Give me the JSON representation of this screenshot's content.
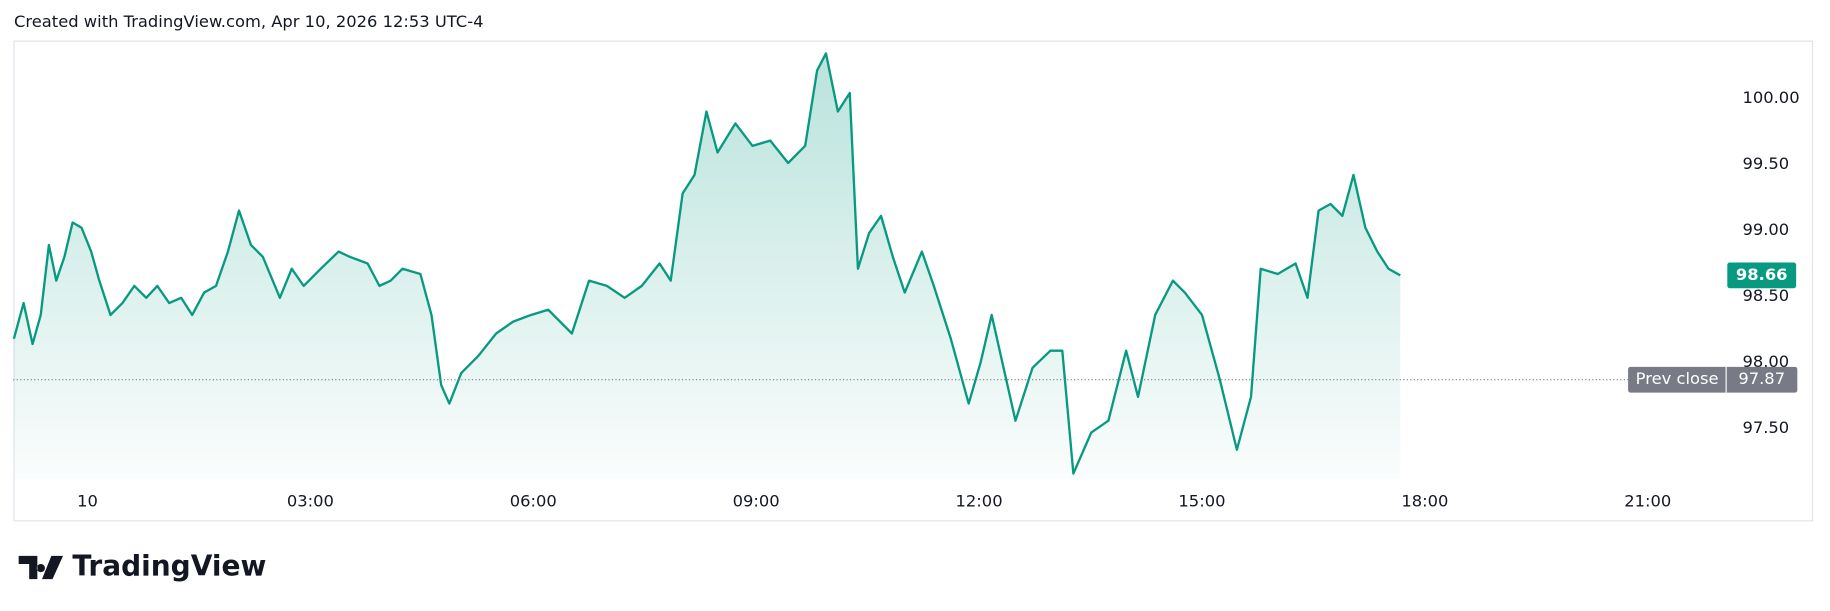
{
  "header": {
    "text": "Created with TradingView.com, Apr 10, 2026 12:53 UTC-4"
  },
  "footer": {
    "logo": "TradingView"
  },
  "chart_data": {
    "type": "line",
    "series": [
      {
        "color": "#089981",
        "x": [
          -0.99,
          -0.86,
          -0.74,
          -0.63,
          -0.52,
          -0.42,
          -0.31,
          -0.2,
          -0.08,
          0.05,
          0.16,
          0.31,
          0.47,
          0.63,
          0.79,
          0.94,
          1.1,
          1.26,
          1.41,
          1.57,
          1.73,
          1.89,
          2.04,
          2.2,
          2.36,
          2.59,
          2.75,
          2.91,
          3.14,
          3.38,
          3.53,
          3.77,
          3.93,
          4.08,
          4.24,
          4.48,
          4.63,
          4.76,
          4.87,
          5.03,
          5.26,
          5.5,
          5.73,
          5.97,
          6.2,
          6.52,
          6.75,
          6.99,
          7.23,
          7.46,
          7.7,
          7.85,
          8.01,
          8.17,
          8.33,
          8.48,
          8.72,
          8.95,
          9.19,
          9.43,
          9.66,
          9.82,
          9.94,
          10.1,
          10.26,
          10.37,
          10.52,
          10.68,
          10.84,
          11.0,
          11.23,
          11.39,
          11.62,
          11.86,
          12.02,
          12.17,
          12.33,
          12.49,
          12.72,
          12.96,
          13.12,
          13.27,
          13.51,
          13.74,
          13.98,
          14.14,
          14.37,
          14.61,
          14.77,
          15.0,
          15.24,
          15.47,
          15.66,
          15.79,
          16.02,
          16.26,
          16.42,
          16.57,
          16.73,
          16.89,
          17.04,
          17.2,
          17.36,
          17.51,
          17.67
        ],
        "values": [
          98.18,
          98.45,
          98.14,
          98.36,
          98.89,
          98.62,
          98.8,
          99.06,
          99.02,
          98.84,
          98.62,
          98.36,
          98.45,
          98.58,
          98.49,
          98.58,
          98.45,
          98.49,
          98.36,
          98.53,
          98.58,
          98.84,
          99.15,
          98.89,
          98.8,
          98.49,
          98.71,
          98.58,
          98.71,
          98.84,
          98.8,
          98.75,
          98.58,
          98.62,
          98.71,
          98.67,
          98.36,
          97.83,
          97.69,
          97.92,
          98.05,
          98.22,
          98.31,
          98.36,
          98.4,
          98.22,
          98.62,
          98.58,
          98.49,
          98.58,
          98.75,
          98.62,
          99.28,
          99.42,
          99.9,
          99.59,
          99.81,
          99.64,
          99.68,
          99.51,
          99.64,
          100.21,
          100.34,
          99.9,
          100.04,
          98.71,
          98.98,
          99.11,
          98.8,
          98.53,
          98.84,
          98.58,
          98.18,
          97.69,
          98.0,
          98.36,
          97.96,
          97.56,
          97.96,
          98.09,
          98.09,
          97.16,
          97.47,
          97.56,
          98.09,
          97.74,
          98.36,
          98.62,
          98.53,
          98.36,
          97.87,
          97.34,
          97.74,
          98.71,
          98.67,
          98.75,
          98.49,
          99.15,
          99.2,
          99.11,
          99.42,
          99.02,
          98.84,
          98.71,
          98.66
        ]
      }
    ],
    "prev_close": {
      "label": "Prev close",
      "value": 97.87
    },
    "xlim": [
      -1,
      22
    ],
    "xticks": [
      {
        "value": 0,
        "label": "10"
      },
      {
        "value": 3,
        "label": "03:00"
      },
      {
        "value": 6,
        "label": "06:00"
      },
      {
        "value": 9,
        "label": "09:00"
      },
      {
        "value": 12,
        "label": "12:00"
      },
      {
        "value": 15,
        "label": "15:00"
      },
      {
        "value": 18,
        "label": "18:00"
      },
      {
        "value": 21,
        "label": "21:00"
      }
    ],
    "ylim": [
      97.12,
      100.43
    ],
    "yticks": [
      {
        "value": 97.5,
        "label": "97.50"
      },
      {
        "value": 98,
        "label": "98.00"
      },
      {
        "value": 98.5,
        "label": "98.50"
      },
      {
        "value": 99,
        "label": "99.00"
      },
      {
        "value": 99.5,
        "label": "99.50"
      },
      {
        "value": 100,
        "label": "100.00"
      }
    ]
  }
}
